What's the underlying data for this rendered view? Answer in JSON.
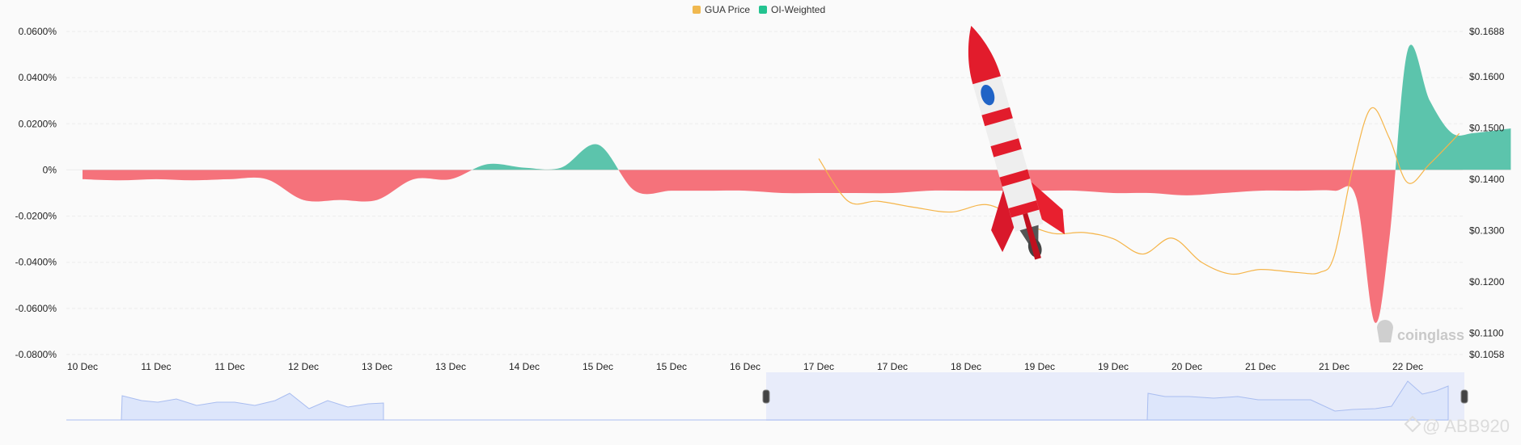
{
  "legend": [
    {
      "label": "GUA Price",
      "color": "#f0b84f"
    },
    {
      "label": "OI-Weighted",
      "color": "#23c390"
    }
  ],
  "watermark": {
    "brand": "coinglass",
    "user": "@ ABB920"
  },
  "colors": {
    "positive": "#5cc4ac",
    "negative": "#f5727b",
    "price": "#f5b54a",
    "navigator": "#dde6fb"
  },
  "chart_data": {
    "type": "area",
    "title": "",
    "xlabel": "",
    "ylabel": "",
    "x_ticks": [
      "10 Dec",
      "11 Dec",
      "11 Dec",
      "12 Dec",
      "13 Dec",
      "13 Dec",
      "14 Dec",
      "15 Dec",
      "15 Dec",
      "16 Dec",
      "17 Dec",
      "17 Dec",
      "18 Dec",
      "19 Dec",
      "19 Dec",
      "20 Dec",
      "21 Dec",
      "21 Dec",
      "22 Dec"
    ],
    "y_left_ticks": [
      "0.0600%",
      "0.0400%",
      "0.0200%",
      "0%",
      "-0.0200%",
      "-0.0400%",
      "-0.0600%",
      "-0.0800%"
    ],
    "y_right_ticks": [
      "$0.1688",
      "$0.1600",
      "$0.1500",
      "$0.1400",
      "$0.1300",
      "$0.1200",
      "$0.1100",
      "$0.1058"
    ],
    "ylim_left": [
      -0.08,
      0.06
    ],
    "ylim_right": [
      0.1058,
      0.1688
    ],
    "series": [
      {
        "name": "OI-Weighted",
        "axis": "left",
        "unit": "%",
        "x": [
          0,
          0.5,
          1,
          1.5,
          2,
          2.5,
          3,
          3.5,
          4,
          4.5,
          5,
          5.5,
          6,
          6.5,
          7,
          7.5,
          8,
          8.5,
          9,
          9.5,
          10,
          10.5,
          11,
          11.5,
          12,
          12.5,
          13,
          13.5,
          14,
          14.5,
          15,
          15.5,
          16,
          16.5,
          17,
          17.3,
          17.55,
          17.75,
          18,
          18.3,
          18.6,
          18.9,
          19.4
        ],
        "values": [
          -0.004,
          -0.0045,
          -0.004,
          -0.0045,
          -0.004,
          -0.004,
          -0.013,
          -0.013,
          -0.013,
          -0.004,
          -0.004,
          0.0025,
          0.001,
          0.001,
          0.011,
          -0.009,
          -0.009,
          -0.009,
          -0.009,
          -0.01,
          -0.01,
          -0.01,
          -0.01,
          -0.009,
          -0.009,
          -0.009,
          -0.009,
          -0.009,
          -0.01,
          -0.01,
          -0.011,
          -0.01,
          -0.009,
          -0.009,
          -0.009,
          -0.012,
          -0.066,
          -0.03,
          0.052,
          0.03,
          0.016,
          0.016,
          0.018
        ]
      },
      {
        "name": "GUA Price",
        "axis": "right",
        "unit": "$",
        "x": [
          10,
          10.4,
          10.8,
          11.3,
          11.8,
          12.3,
          12.8,
          13.2,
          13.6,
          14.0,
          14.4,
          14.8,
          15.2,
          15.6,
          16.0,
          16.5,
          16.8,
          17.0,
          17.25,
          17.5,
          17.75,
          18.0,
          18.3,
          18.7
        ],
        "values": [
          0.144,
          0.1357,
          0.1357,
          0.1345,
          0.1336,
          0.135,
          0.1314,
          0.1294,
          0.1296,
          0.1284,
          0.1254,
          0.1285,
          0.1238,
          0.1215,
          0.1224,
          0.1218,
          0.1218,
          0.125,
          0.142,
          0.1538,
          0.148,
          0.1393,
          0.143,
          0.1489
        ]
      }
    ],
    "legend_position": "top-center",
    "grid": true
  }
}
